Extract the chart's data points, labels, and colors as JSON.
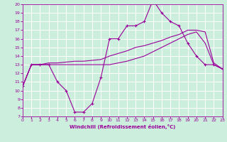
{
  "bg_color": "#cceedd",
  "line_color": "#990099",
  "grid_color": "#ffffff",
  "xlim": [
    0,
    23
  ],
  "ylim": [
    7,
    20
  ],
  "xticks": [
    0,
    1,
    2,
    3,
    4,
    5,
    6,
    7,
    8,
    9,
    10,
    11,
    12,
    13,
    14,
    15,
    16,
    17,
    18,
    19,
    20,
    21,
    22,
    23
  ],
  "yticks": [
    7,
    8,
    9,
    10,
    11,
    12,
    13,
    14,
    15,
    16,
    17,
    18,
    19,
    20
  ],
  "xlabel": "Windchill (Refroidissement éolien,°C)",
  "line1_x": [
    0,
    1,
    2,
    3,
    4,
    5,
    6,
    7,
    8,
    9,
    10,
    11,
    12,
    13,
    14,
    15,
    16,
    17,
    18,
    19,
    20,
    21,
    22,
    23
  ],
  "line1_y": [
    10.5,
    13.0,
    13.0,
    13.0,
    11.0,
    10.0,
    7.5,
    7.5,
    8.5,
    11.5,
    16.0,
    16.0,
    17.5,
    17.5,
    18.0,
    20.5,
    19.0,
    18.0,
    17.5,
    15.5,
    14.0,
    13.0,
    13.0,
    12.5
  ],
  "line2_x": [
    0,
    1,
    2,
    3,
    4,
    5,
    6,
    7,
    8,
    9,
    10,
    11,
    12,
    13,
    14,
    15,
    16,
    17,
    18,
    19,
    20,
    21,
    22,
    23
  ],
  "line2_y": [
    10.5,
    13.0,
    13.0,
    13.2,
    13.2,
    13.3,
    13.4,
    13.4,
    13.5,
    13.6,
    14.0,
    14.3,
    14.6,
    15.0,
    15.2,
    15.5,
    15.8,
    16.2,
    16.5,
    17.0,
    17.0,
    16.8,
    13.2,
    12.5
  ],
  "line3_x": [
    0,
    1,
    2,
    3,
    4,
    5,
    6,
    7,
    8,
    9,
    10,
    11,
    12,
    13,
    14,
    15,
    16,
    17,
    18,
    19,
    20,
    21,
    22,
    23
  ],
  "line3_y": [
    10.5,
    13.0,
    13.0,
    13.0,
    13.0,
    13.0,
    13.0,
    13.0,
    13.0,
    13.0,
    13.0,
    13.2,
    13.4,
    13.7,
    14.0,
    14.5,
    15.0,
    15.5,
    16.0,
    16.5,
    16.8,
    15.5,
    13.0,
    12.5
  ]
}
